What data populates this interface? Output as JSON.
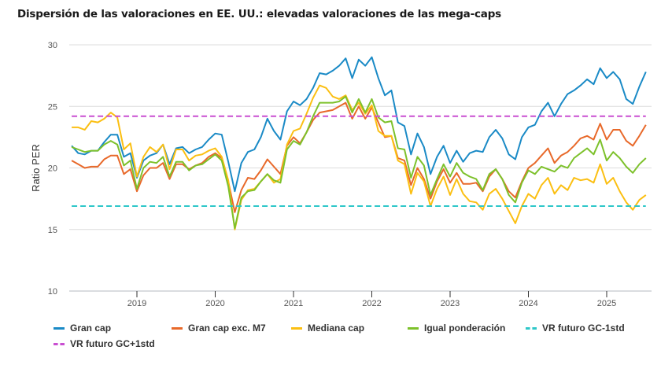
{
  "title": "Dispersión de las valoraciones en EE. UU.: elevadas valoraciones de las mega-caps",
  "chart_data": {
    "type": "line",
    "title": "Dispersión de las valoraciones en EE. UU.: elevadas valoraciones de las mega-caps",
    "xlabel": "",
    "ylabel": "Ratio PER",
    "ylim": [
      10,
      30
    ],
    "yticks": [
      10,
      15,
      20,
      25,
      30
    ],
    "x_start": "2018-03",
    "x_end": "2025-07",
    "x_frequency": "monthly",
    "xlim": [
      "2018-03",
      "2025-07"
    ],
    "xticks": [
      "2019",
      "2020",
      "2021",
      "2022",
      "2023",
      "2024",
      "2025"
    ],
    "grid": "horizontal",
    "legend_position": "bottom",
    "series": [
      {
        "name": "Gran cap",
        "color": "#1a8ac6",
        "style": "solid",
        "values": [
          21.8,
          21.2,
          21.1,
          21.4,
          21.4,
          22.1,
          22.7,
          22.7,
          20.9,
          21.2,
          19.2,
          20.6,
          21.0,
          21.2,
          21.9,
          20.3,
          21.6,
          21.7,
          21.2,
          21.5,
          21.7,
          22.3,
          22.8,
          22.7,
          20.5,
          18.1,
          20.4,
          21.3,
          21.5,
          22.5,
          24.0,
          23.0,
          22.3,
          24.6,
          25.4,
          25.1,
          25.6,
          26.5,
          27.7,
          27.6,
          27.9,
          28.3,
          28.9,
          27.3,
          28.8,
          28.3,
          29.0,
          27.3,
          25.9,
          26.3,
          23.7,
          23.4,
          21.1,
          22.8,
          21.7,
          19.5,
          20.9,
          21.8,
          20.4,
          21.4,
          20.5,
          21.2,
          21.4,
          21.3,
          22.5,
          23.1,
          22.4,
          21.1,
          20.7,
          22.5,
          23.3,
          23.5,
          24.6,
          25.3,
          24.2,
          25.2,
          26.0,
          26.3,
          26.7,
          27.2,
          26.8,
          28.1,
          27.3,
          27.8,
          27.2,
          25.6,
          25.2,
          26.6,
          27.8
        ]
      },
      {
        "name": "Gran cap exc. M7",
        "color": "#e8692a",
        "style": "solid",
        "values": [
          20.6,
          20.3,
          20.0,
          20.1,
          20.1,
          20.7,
          21.0,
          21.0,
          19.5,
          19.9,
          18.1,
          19.4,
          20.0,
          20.0,
          20.4,
          19.1,
          20.3,
          20.3,
          19.9,
          20.2,
          20.4,
          20.9,
          21.2,
          20.8,
          18.9,
          16.4,
          18.2,
          19.2,
          19.1,
          19.8,
          20.7,
          20.1,
          19.5,
          21.8,
          22.5,
          22.0,
          22.9,
          23.9,
          24.5,
          24.6,
          24.7,
          25.0,
          25.3,
          24.0,
          25.0,
          24.0,
          24.9,
          23.7,
          22.5,
          22.6,
          20.8,
          20.6,
          18.6,
          20.0,
          19.1,
          17.5,
          18.9,
          19.9,
          18.8,
          19.6,
          18.7,
          18.7,
          18.8,
          18.1,
          19.3,
          19.9,
          19.1,
          18.1,
          17.6,
          18.9,
          20.0,
          20.4,
          21.0,
          21.6,
          20.4,
          21.0,
          21.3,
          21.8,
          22.4,
          22.6,
          22.3,
          23.6,
          22.3,
          23.1,
          23.1,
          22.2,
          21.8,
          22.6,
          23.5
        ]
      },
      {
        "name": "Mediana cap",
        "color": "#fbbf12",
        "style": "solid",
        "values": [
          23.3,
          23.3,
          23.1,
          23.8,
          23.7,
          24.0,
          24.5,
          24.1,
          21.5,
          22.0,
          19.3,
          20.9,
          21.7,
          21.3,
          21.9,
          19.9,
          21.5,
          21.5,
          20.6,
          21.0,
          21.1,
          21.4,
          21.6,
          20.9,
          19.0,
          15.0,
          17.4,
          18.2,
          18.3,
          18.9,
          19.5,
          18.8,
          19.1,
          21.9,
          23.0,
          23.2,
          24.4,
          25.7,
          26.7,
          26.5,
          25.8,
          25.6,
          25.9,
          24.7,
          25.3,
          24.4,
          25.1,
          23.0,
          22.6,
          22.6,
          20.6,
          20.3,
          17.9,
          19.6,
          18.9,
          16.9,
          18.3,
          19.3,
          17.8,
          19.1,
          17.9,
          17.3,
          17.2,
          16.6,
          17.9,
          18.3,
          17.5,
          16.5,
          15.5,
          16.9,
          17.9,
          17.5,
          18.6,
          19.2,
          17.9,
          18.6,
          18.2,
          19.2,
          19.0,
          19.1,
          18.8,
          20.3,
          18.7,
          19.2,
          18.1,
          17.2,
          16.6,
          17.4,
          17.8
        ]
      },
      {
        "name": "Igual ponderación",
        "color": "#7dc12b",
        "style": "solid",
        "values": [
          21.7,
          21.5,
          21.3,
          21.4,
          21.4,
          21.9,
          22.2,
          21.9,
          20.2,
          20.6,
          18.3,
          20.0,
          20.5,
          20.4,
          20.9,
          19.3,
          20.5,
          20.5,
          19.8,
          20.2,
          20.3,
          20.7,
          21.1,
          20.6,
          18.5,
          15.1,
          17.6,
          18.1,
          18.2,
          18.9,
          19.5,
          19.0,
          18.8,
          21.5,
          22.2,
          21.9,
          22.9,
          24.2,
          25.3,
          25.3,
          25.3,
          25.4,
          25.8,
          24.5,
          25.6,
          24.5,
          25.6,
          24.1,
          23.7,
          23.8,
          21.6,
          21.5,
          19.2,
          20.9,
          20.2,
          17.8,
          19.1,
          20.3,
          19.3,
          20.4,
          19.6,
          19.3,
          19.1,
          18.2,
          19.5,
          19.9,
          19.1,
          17.8,
          17.2,
          18.8,
          19.8,
          19.5,
          20.1,
          19.9,
          19.7,
          20.2,
          20.0,
          20.8,
          21.2,
          21.6,
          21.1,
          22.3,
          20.6,
          21.3,
          20.8,
          20.1,
          19.6,
          20.3,
          20.8
        ]
      },
      {
        "name": "VR futuro GC-1std",
        "color": "#2ec7c9",
        "style": "dashed",
        "constant": 16.9
      },
      {
        "name": "VR futuro GC+1std",
        "color": "#c94fd1",
        "style": "dashed",
        "constant": 24.2
      }
    ]
  },
  "legend": {
    "items": [
      {
        "label": "Gran cap",
        "color": "#1a8ac6",
        "style": "solid"
      },
      {
        "label": "Gran cap exc. M7",
        "color": "#e8692a",
        "style": "solid"
      },
      {
        "label": "Mediana cap",
        "color": "#fbbf12",
        "style": "solid"
      },
      {
        "label": "Igual ponderación",
        "color": "#7dc12b",
        "style": "solid"
      },
      {
        "label": "VR futuro GC-1std",
        "color": "#2ec7c9",
        "style": "dashed"
      },
      {
        "label": "VR futuro GC+1std",
        "color": "#c94fd1",
        "style": "dashed"
      }
    ]
  }
}
